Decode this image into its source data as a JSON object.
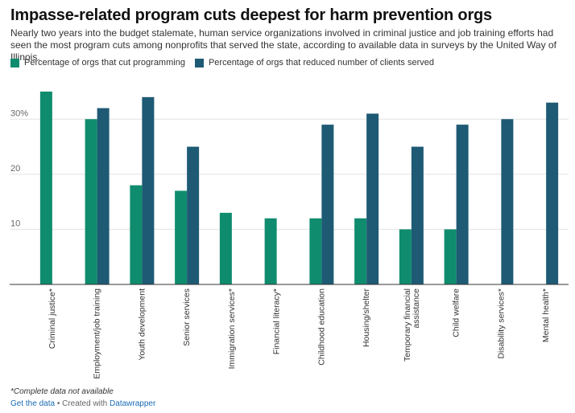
{
  "header": {
    "title": "Impasse-related program cuts deepest for harm prevention orgs",
    "subtitle": "Nearly two years into the budget stalemate, human service organizations involved in criminal justice and job training efforts had seen the most program cuts among nonprofits that served the state, according to available data in surveys by the United Way of Illinois."
  },
  "footer": {
    "notes": "*Complete data not available",
    "get_data_label": "Get the data",
    "separator": " • Created with ",
    "tool_label": "Datawrapper"
  },
  "chart_data": {
    "type": "bar",
    "categories": [
      "Criminal justice*",
      "Employment/job training",
      "Youth development",
      "Senior services",
      "Immigration services*",
      "Financial literacy*",
      "Childhood education",
      "Housing/shelter",
      "Temporary financial assistance",
      "Child welfare",
      "Disability services*",
      "Mental health*"
    ],
    "series": [
      {
        "name": "Percentage of orgs that cut programming",
        "color": "#0f8c6e",
        "values": [
          35,
          30,
          18,
          17,
          13,
          12,
          12,
          12,
          10,
          10,
          null,
          null
        ]
      },
      {
        "name": "Percentage of orgs that reduced number of clients served",
        "color": "#1e5a74",
        "values": [
          null,
          32,
          34,
          25,
          null,
          null,
          29,
          31,
          25,
          29,
          30,
          33
        ]
      }
    ],
    "yticks": [
      {
        "value": 10,
        "label": "10"
      },
      {
        "value": 20,
        "label": "20"
      },
      {
        "value": 30,
        "label": "30%"
      }
    ],
    "ylim": [
      0,
      35
    ],
    "grid": true,
    "legend_position": "top-left"
  }
}
